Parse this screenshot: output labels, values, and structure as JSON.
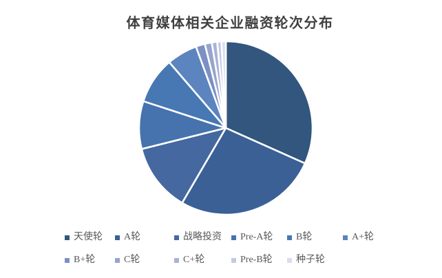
{
  "page": {
    "background": "#ffffff",
    "title_color": "#404040",
    "legend_text_color": "#595959"
  },
  "chart_data": {
    "type": "pie",
    "title": "体育媒体相关企业融资轮次分布",
    "legend_position": "bottom",
    "start_angle_deg": 0,
    "direction": "clockwise",
    "units": "percent",
    "series": [
      {
        "name": "天使轮",
        "value": 31.7,
        "color": "#32567D"
      },
      {
        "name": "A轮",
        "value": 26.7,
        "color": "#3A6096"
      },
      {
        "name": "战略投资",
        "value": 12.7,
        "color": "#44689F"
      },
      {
        "name": "Pre-A轮",
        "value": 8.9,
        "color": "#4673AE"
      },
      {
        "name": "B轮",
        "value": 8.7,
        "color": "#4878B3"
      },
      {
        "name": "A+轮",
        "value": 5.7,
        "color": "#5C84BE"
      },
      {
        "name": "B+轮",
        "value": 1.7,
        "color": "#7B90C3"
      },
      {
        "name": "C轮",
        "value": 1.3,
        "color": "#97A4CE"
      },
      {
        "name": "C+轮",
        "value": 1.0,
        "color": "#A9B3D7"
      },
      {
        "name": "Pre-B轮",
        "value": 0.8,
        "color": "#C3CAE3"
      },
      {
        "name": "种子轮",
        "value": 0.8,
        "color": "#D9DDED"
      }
    ]
  }
}
